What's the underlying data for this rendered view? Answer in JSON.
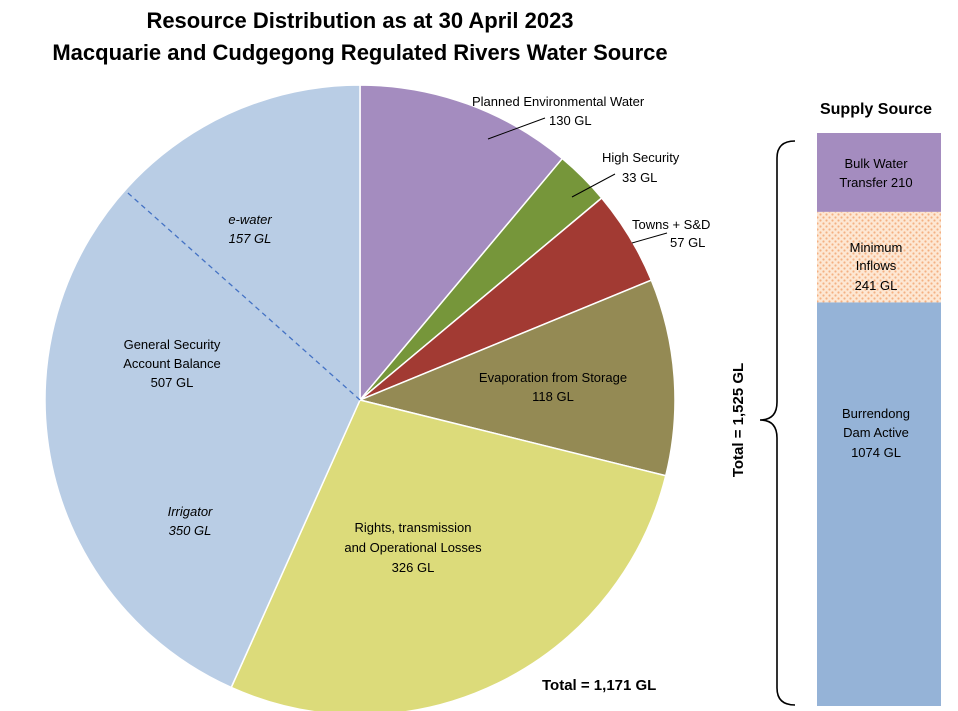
{
  "title_line1": "Resource Distribution as at 30 April 2023",
  "title_line2": "Macquarie and Cudgegong Regulated Rivers Water Source",
  "chart_data": [
    {
      "type": "pie",
      "title": "Resource Distribution as at 30 April 2023 Macquarie and Cudgegong Regulated Rivers Water Source",
      "total_label": "Total = 1,171 GL",
      "slices": [
        {
          "name": "Planned Environmental Water",
          "value": 130,
          "label": "130 GL",
          "color": "#a48cbf"
        },
        {
          "name": "High Security",
          "value": 33,
          "label": "33 GL",
          "color": "#76963a"
        },
        {
          "name": "Towns + S&D",
          "value": 57,
          "label": "57 GL",
          "color": "#a23a33"
        },
        {
          "name": "Evaporation from Storage",
          "value": 118,
          "label": "118 GL",
          "color": "#948a54"
        },
        {
          "name": "Rights, transmission and Operational Losses",
          "value": 326,
          "label": "326 GL",
          "color": "#dcdb7a"
        },
        {
          "name": "General Security Account Balance",
          "value": 507,
          "label": "507 GL",
          "color": "#b9cde5"
        }
      ],
      "sub_split": [
        {
          "name": "e-water",
          "value": 157,
          "label": "157 GL"
        },
        {
          "name": "Irrigator",
          "value": 350,
          "label": "350 GL"
        }
      ]
    },
    {
      "type": "bar",
      "title": "Supply Source",
      "total_label": "Total = 1,525 GL",
      "segments": [
        {
          "name": "Bulk Water Transfer",
          "value": 210,
          "label": "Bulk Water Transfer 210",
          "color": "#a48cbf"
        },
        {
          "name": "Minimum Inflows",
          "value": 241,
          "label": "241 GL",
          "color": "#fbd5b5"
        },
        {
          "name": "Burrendong Dam Active",
          "value": 1074,
          "label": "1074 GL",
          "color": "#95b3d7"
        }
      ]
    }
  ],
  "labels": {
    "pew_1": "Planned Environmental Water",
    "pew_2": "130 GL",
    "hs_1": "High Security",
    "hs_2": "33 GL",
    "towns_1": "Towns + S&D",
    "towns_2": "57 GL",
    "evap_1": "Evaporation from Storage",
    "evap_2": "118 GL",
    "rights_1": "Rights, transmission",
    "rights_2": "and Operational Losses",
    "rights_3": "326 GL",
    "gs_1": "General Security",
    "gs_2": "Account Balance",
    "gs_3": "507 GL",
    "ew_1": "e-water",
    "ew_2": "157 GL",
    "irr_1": "Irrigator",
    "irr_2": "350 GL",
    "pie_total": "Total = 1,171 GL",
    "supply_title": "Supply Source",
    "bwt_1": "Bulk Water",
    "bwt_2": "Transfer 210",
    "mi_1": "Minimum",
    "mi_2": "Inflows",
    "mi_3": "241 GL",
    "bd_1": "Burrendong",
    "bd_2": "Dam Active",
    "bd_3": "1074 GL",
    "supply_total": "Total = 1,525 GL"
  }
}
